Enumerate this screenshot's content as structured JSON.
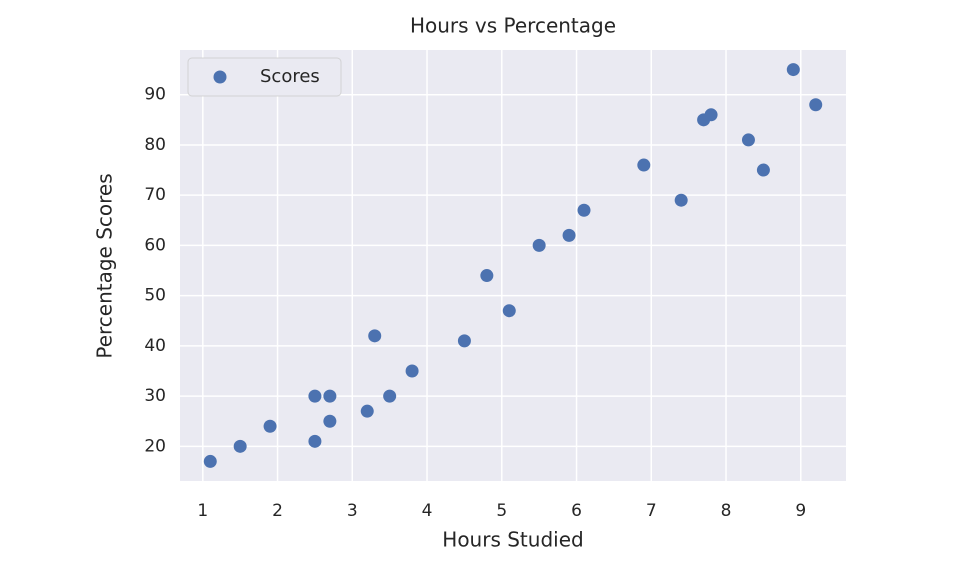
{
  "chart_data": {
    "type": "scatter",
    "title": "Hours vs Percentage",
    "x_label": "Hours Studied",
    "y_label": "Percentage Scores",
    "series": [
      {
        "name": "Scores",
        "color": "#4c72b0",
        "x": [
          2.5,
          5.1,
          3.2,
          8.5,
          3.5,
          1.5,
          9.2,
          5.5,
          8.3,
          2.7,
          7.7,
          5.9,
          4.5,
          3.3,
          1.1,
          8.9,
          2.5,
          1.9,
          6.1,
          7.4,
          2.7,
          4.8,
          3.8,
          6.9,
          7.8
        ],
        "values": [
          21,
          47,
          27,
          75,
          30,
          20,
          88,
          60,
          81,
          25,
          85,
          62,
          41,
          42,
          17,
          95,
          30,
          24,
          67,
          69,
          30,
          54,
          35,
          76,
          86
        ]
      }
    ],
    "xlim": [
      0.695,
      9.605
    ],
    "ylim": [
      13.1,
      98.9
    ],
    "xticks": [
      1,
      2,
      3,
      4,
      5,
      6,
      7,
      8,
      9
    ],
    "yticks": [
      20,
      30,
      40,
      50,
      60,
      70,
      80,
      90
    ],
    "grid": true,
    "legend": "upper left"
  }
}
